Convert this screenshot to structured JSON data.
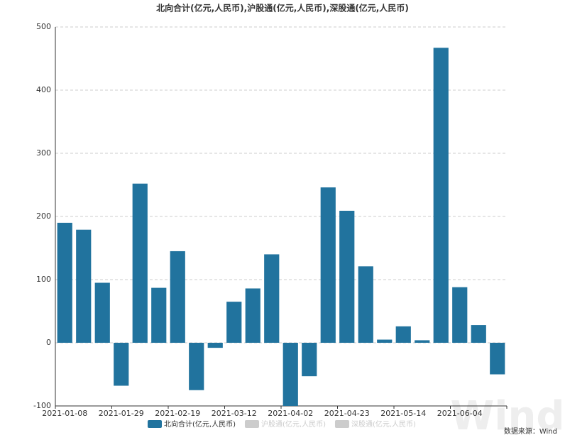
{
  "chart_data": {
    "type": "bar",
    "title": "北向合计(亿元,人民币),沪股通(亿元,人民币),深股通(亿元,人民币)",
    "categories": [
      "2021-01-08",
      null,
      null,
      "2021-01-29",
      null,
      null,
      "2021-02-19",
      null,
      null,
      "2021-03-12",
      null,
      null,
      "2021-04-02",
      null,
      null,
      "2021-04-23",
      null,
      null,
      "2021-05-14",
      null,
      null,
      "2021-06-04",
      null,
      null
    ],
    "series": [
      {
        "name": "北向合计(亿元,人民币)",
        "color": "#21739e",
        "hidden": false,
        "values": [
          190,
          179,
          95,
          -68,
          252,
          87,
          145,
          -75,
          -8,
          65,
          86,
          140,
          -100,
          -53,
          246,
          209,
          121,
          5,
          26,
          4,
          467,
          88,
          28,
          -50
        ]
      },
      {
        "name": "沪股通(亿元,人民币)",
        "color": "#cccccc",
        "hidden": true,
        "values": [
          null,
          null,
          null,
          null,
          null,
          null,
          null,
          null,
          null,
          null,
          null,
          null,
          null,
          null,
          null,
          null,
          null,
          null,
          null,
          null,
          null,
          null,
          null,
          null
        ]
      },
      {
        "name": "深股通(亿元,人民币)",
        "color": "#cccccc",
        "hidden": true,
        "values": [
          null,
          null,
          null,
          null,
          null,
          null,
          null,
          null,
          null,
          null,
          null,
          null,
          null,
          null,
          null,
          null,
          null,
          null,
          null,
          null,
          null,
          null,
          null,
          null
        ]
      }
    ],
    "ylim": [
      -100,
      500
    ],
    "yticks": [
      -100,
      0,
      100,
      200,
      300,
      400,
      500
    ],
    "grid": true,
    "legend": "bottom",
    "source": "数据来源：Wind",
    "watermark": "Wind"
  }
}
